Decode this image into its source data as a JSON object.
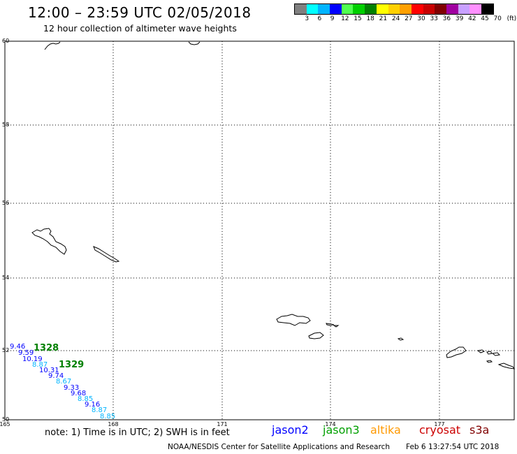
{
  "header": {
    "title": "12:00 – 23:59 UTC 02/05/2018",
    "subtitle": "12 hour collection of altimeter wave heights"
  },
  "legend": {
    "colors": [
      "#808080",
      "#00ffff",
      "#00b4ff",
      "#0000ff",
      "#50ff50",
      "#00d000",
      "#008000",
      "#ffff00",
      "#ffd000",
      "#ffa000",
      "#ff0000",
      "#c80000",
      "#800000",
      "#a000a0",
      "#c8a0ff",
      "#ff90ff",
      "#000000"
    ],
    "labels": [
      "3",
      "6",
      "9",
      "12",
      "15",
      "18",
      "21",
      "24",
      "27",
      "30",
      "33",
      "36",
      "39",
      "42",
      "45",
      "70",
      "(ft)"
    ]
  },
  "axes": {
    "lat_labels": [
      "60",
      "58",
      "56",
      "54",
      "52",
      "50"
    ],
    "lon_labels": [
      "165",
      "168",
      "171",
      "174",
      "177"
    ]
  },
  "observations": {
    "track_times": [
      "1328",
      "1329"
    ],
    "wave_heights": [
      {
        "value": "9.46",
        "color": "#0000ff"
      },
      {
        "value": "9.59",
        "color": "#0000ff"
      },
      {
        "value": "10.19",
        "color": "#0000ff"
      },
      {
        "value": "8.87",
        "color": "#00b4ff"
      },
      {
        "value": "10.31",
        "color": "#0000ff"
      },
      {
        "value": "9.74",
        "color": "#0000ff"
      },
      {
        "value": "8.67",
        "color": "#00b4ff"
      },
      {
        "value": "9.33",
        "color": "#0000ff"
      },
      {
        "value": "9.68",
        "color": "#0000ff"
      },
      {
        "value": "8.85",
        "color": "#00b4ff"
      },
      {
        "value": "9.16",
        "color": "#0000ff"
      },
      {
        "value": "8.87",
        "color": "#00b4ff"
      },
      {
        "value": "8.85",
        "color": "#00b4ff"
      }
    ]
  },
  "footer": {
    "note": "note: 1) Time is in UTC; 2) SWH is in feet",
    "satellites": [
      {
        "name": "jason2",
        "color": "#0000ff"
      },
      {
        "name": "jason3",
        "color": "#00a000"
      },
      {
        "name": "altika",
        "color": "#ff9900"
      },
      {
        "name": "cryosat",
        "color": "#cc0000"
      },
      {
        "name": "s3a",
        "color": "#800000"
      }
    ],
    "credit": "NOAA/NESDIS Center for Satellite Applications and Research",
    "timestamp": "Feb  6 13:27:54 UTC 2018"
  }
}
